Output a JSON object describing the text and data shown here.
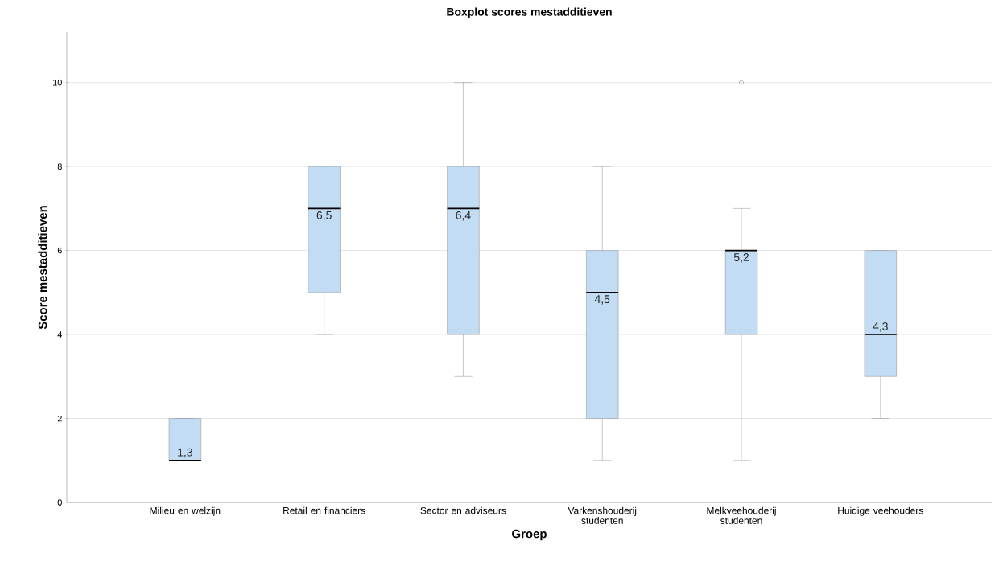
{
  "chart_data": {
    "type": "box",
    "title": "Boxplot scores mestadditieven",
    "xlabel": "Groep",
    "ylabel": "Score mestadditieven",
    "categories": [
      "Milieu en welzijn",
      "Retail en financiers",
      "Sector en adviseurs",
      "Varkenshouderij studenten",
      "Melkveehouderij studenten",
      "Huidige veehouders"
    ],
    "boxes": [
      {
        "low": 1,
        "q1": 1,
        "median": 1,
        "q3": 2,
        "high": 2
      },
      {
        "low": 4,
        "q1": 5,
        "median": 7,
        "q3": 8,
        "high": 8
      },
      {
        "low": 3,
        "q1": 4,
        "median": 7,
        "q3": 8,
        "high": 10
      },
      {
        "low": 1,
        "q1": 2,
        "median": 5,
        "q3": 6,
        "high": 8
      },
      {
        "low": 1,
        "q1": 4,
        "median": 6,
        "q3": 6,
        "high": 7,
        "outliers": [
          10
        ]
      },
      {
        "low": 2,
        "q1": 3,
        "median": 4,
        "q3": 6,
        "high": 6
      }
    ],
    "color": "#c2ddf3",
    "ylim": [
      0,
      11.2
    ],
    "yticks": [
      0,
      2,
      4,
      6,
      8,
      10
    ],
    "grid": "y",
    "annotations": [
      "1,3",
      "6,5",
      "6,4",
      "4,5",
      "5,2",
      "4,3"
    ]
  }
}
